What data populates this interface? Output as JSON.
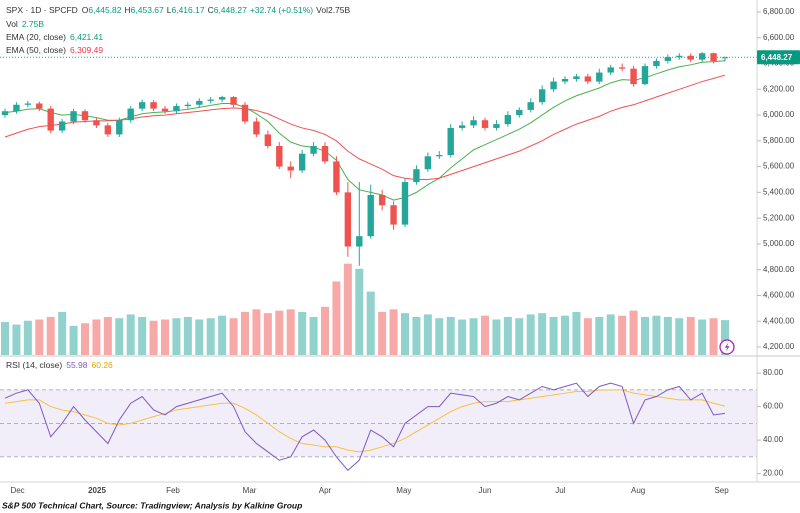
{
  "header": {
    "symbol": "SPX · 1D · SPCFD",
    "change": "+32.74 (+0.51%)",
    "vol": {
      "key": "Vol",
      "value": "2.75B"
    }
  },
  "caption": "S&P 500 Technical Chart, Source: Tradingview; Analysis by Kalkine Group",
  "chart_data": [
    {
      "type": "candlestick",
      "ohlc_keys": {
        "open": "O",
        "high": "H",
        "low": "L",
        "close": "C"
      },
      "last_labels": {
        "open": "6,445.82",
        "high": "6,453.67",
        "low": "6,416.17",
        "close": "6,448.27"
      },
      "last_price": {
        "value": 6448.27,
        "label": "6,448.27"
      },
      "up_color": "#26a69a",
      "down_color": "#ef5350",
      "candles": {
        "open": [
          6000,
          6030,
          6080,
          6090,
          6050,
          5880,
          5950,
          6030,
          5960,
          5920,
          5850,
          5960,
          6050,
          6100,
          6050,
          6030,
          6070,
          6080,
          6110,
          6120,
          6140,
          6080,
          5950,
          5850,
          5760,
          5600,
          5570,
          5700,
          5760,
          5640,
          5400,
          4980,
          5060,
          5380,
          5300,
          5150,
          5480,
          5580,
          5680,
          5690,
          5900,
          5920,
          5960,
          5900,
          5930,
          6000,
          6040,
          6100,
          6200,
          6260,
          6280,
          6300,
          6260,
          6330,
          6370,
          6360,
          6240,
          6380,
          6420,
          6450,
          6460,
          6430,
          6480,
          6445.82
        ],
        "high": [
          6050,
          6100,
          6110,
          6105,
          6070,
          5970,
          6050,
          6045,
          5980,
          5940,
          5980,
          6070,
          6120,
          6115,
          6070,
          6090,
          6100,
          6130,
          6140,
          6150,
          6147,
          6100,
          5980,
          5880,
          5790,
          5640,
          5730,
          5790,
          5790,
          5680,
          5480,
          5480,
          5460,
          5420,
          5330,
          5510,
          5610,
          5710,
          5720,
          5930,
          5950,
          5990,
          5980,
          5960,
          6030,
          6060,
          6130,
          6230,
          6290,
          6300,
          6320,
          6320,
          6360,
          6390,
          6400,
          6380,
          6400,
          6440,
          6470,
          6480,
          6480,
          6490,
          6485,
          6453.67
        ],
        "low": [
          5980,
          6010,
          6060,
          6030,
          5860,
          5860,
          5930,
          5940,
          5900,
          5830,
          5830,
          5940,
          6030,
          6030,
          6010,
          6010,
          6050,
          6060,
          6090,
          6100,
          6060,
          5930,
          5830,
          5740,
          5580,
          5510,
          5550,
          5680,
          5620,
          5380,
          4900,
          4830,
          5040,
          5260,
          5110,
          5130,
          5460,
          5560,
          5660,
          5670,
          5880,
          5900,
          5880,
          5880,
          5910,
          5980,
          6020,
          6080,
          6180,
          6240,
          6260,
          6240,
          6240,
          6310,
          6340,
          6220,
          6230,
          6360,
          6400,
          6430,
          6410,
          6410,
          6400,
          6416.17
        ],
        "close": [
          6030,
          6080,
          6090,
          6050,
          5880,
          5950,
          6030,
          5960,
          5920,
          5850,
          5960,
          6050,
          6100,
          6050,
          6030,
          6070,
          6080,
          6110,
          6120,
          6140,
          6080,
          5950,
          5850,
          5760,
          5600,
          5570,
          5700,
          5760,
          5640,
          5400,
          4980,
          5060,
          5380,
          5300,
          5150,
          5480,
          5580,
          5680,
          5690,
          5900,
          5920,
          5960,
          5900,
          5930,
          6000,
          6040,
          6100,
          6200,
          6260,
          6280,
          6300,
          6260,
          6330,
          6370,
          6360,
          6240,
          6380,
          6420,
          6450,
          6460,
          6430,
          6480,
          6420,
          6448.27
        ]
      },
      "series": [
        {
          "name": "EMA (20, close)",
          "color": "#4caf50",
          "last_label": "6,421.41",
          "values": [
            6020,
            6030,
            6045,
            6050,
            6020,
            6000,
            6005,
            5995,
            5980,
            5960,
            5960,
            5985,
            6010,
            6020,
            6025,
            6035,
            6045,
            6060,
            6075,
            6090,
            6090,
            6060,
            6010,
            5950,
            5860,
            5790,
            5760,
            5750,
            5720,
            5650,
            5500,
            5420,
            5400,
            5380,
            5340,
            5360,
            5400,
            5460,
            5510,
            5590,
            5660,
            5730,
            5770,
            5810,
            5850,
            5890,
            5940,
            6000,
            6060,
            6110,
            6150,
            6180,
            6210,
            6250,
            6275,
            6270,
            6290,
            6320,
            6350,
            6375,
            6390,
            6410,
            6415,
            6421.41
          ]
        },
        {
          "name": "EMA (50, close)",
          "color": "#f05252",
          "last_label": "6,309.49",
          "values": [
            5830,
            5860,
            5890,
            5910,
            5920,
            5930,
            5945,
            5950,
            5955,
            5955,
            5960,
            5970,
            5985,
            5995,
            6000,
            6010,
            6020,
            6030,
            6040,
            6050,
            6055,
            6050,
            6035,
            6010,
            5970,
            5930,
            5900,
            5880,
            5850,
            5800,
            5720,
            5660,
            5620,
            5580,
            5530,
            5510,
            5500,
            5500,
            5510,
            5540,
            5570,
            5600,
            5630,
            5660,
            5690,
            5720,
            5760,
            5800,
            5850,
            5890,
            5930,
            5960,
            5990,
            6030,
            6060,
            6080,
            6110,
            6140,
            6170,
            6200,
            6230,
            6260,
            6285,
            6309.49
          ]
        }
      ],
      "volume": {
        "ylim": [
          0,
          28
        ],
        "values": [
          2.6,
          2.4,
          2.7,
          2.8,
          3.0,
          3.4,
          2.3,
          2.5,
          2.8,
          3.0,
          2.9,
          3.2,
          3.0,
          2.7,
          2.8,
          2.9,
          3.0,
          2.8,
          2.9,
          3.1,
          2.9,
          3.4,
          3.6,
          3.3,
          3.5,
          3.6,
          3.4,
          3.0,
          3.8,
          5.8,
          7.2,
          6.8,
          5.0,
          3.4,
          3.6,
          3.3,
          3.0,
          3.2,
          2.9,
          3.0,
          2.8,
          2.9,
          3.1,
          2.8,
          3.0,
          2.9,
          3.2,
          3.3,
          3.0,
          3.1,
          3.4,
          2.9,
          3.0,
          3.2,
          3.1,
          3.5,
          3.0,
          3.1,
          3.0,
          2.9,
          3.0,
          2.8,
          2.9,
          2.75
        ]
      },
      "ylim": [
        4138,
        6893
      ],
      "yticks": [
        {
          "value": 4200,
          "label": "4,200.00"
        },
        {
          "value": 4400,
          "label": "4,400.00"
        },
        {
          "value": 4600,
          "label": "4,600.00"
        },
        {
          "value": 4800,
          "label": "4,800.00"
        },
        {
          "value": 5000,
          "label": "5,000.00"
        },
        {
          "value": 5200,
          "label": "5,200.00"
        },
        {
          "value": 5400,
          "label": "5,400.00"
        },
        {
          "value": 5600,
          "label": "5,600.00"
        },
        {
          "value": 5800,
          "label": "5,800.00"
        },
        {
          "value": 6000,
          "label": "6,000.00"
        },
        {
          "value": 6200,
          "label": "6,200.00"
        },
        {
          "value": 6400,
          "label": "6,400.00"
        },
        {
          "value": 6600,
          "label": "6,600.00"
        },
        {
          "value": 6800,
          "label": "6,800.00"
        }
      ],
      "xticks": [
        {
          "value": 1.1,
          "label": "Dec"
        },
        {
          "value": 8.05,
          "label": "2025"
        },
        {
          "value": 14.7,
          "label": "Feb"
        },
        {
          "value": 21.4,
          "label": "Mar"
        },
        {
          "value": 28,
          "label": "Apr"
        },
        {
          "value": 34.9,
          "label": "May"
        },
        {
          "value": 42,
          "label": "Jun"
        },
        {
          "value": 48.6,
          "label": "Jul"
        },
        {
          "value": 55.4,
          "label": "Aug"
        },
        {
          "value": 62.7,
          "label": "Sep"
        }
      ],
      "grid": false
    },
    {
      "type": "line",
      "title": "RSI (14, close)",
      "series": [
        {
          "color": "#7e57c2",
          "last_label": "55.98",
          "values": [
            65,
            68,
            70,
            62,
            42,
            50,
            60,
            52,
            45,
            38,
            52,
            62,
            66,
            58,
            55,
            60,
            62,
            64,
            66,
            68,
            60,
            45,
            38,
            33,
            28,
            30,
            42,
            46,
            40,
            30,
            22,
            28,
            46,
            42,
            36,
            50,
            55,
            60,
            60,
            68,
            67,
            66,
            60,
            62,
            66,
            64,
            68,
            72,
            70,
            72,
            74,
            66,
            72,
            74,
            72,
            50,
            64,
            66,
            70,
            72,
            64,
            68,
            55,
            55.98
          ]
        },
        {
          "color": "#f5c242",
          "last_label": "60.26",
          "values": [
            62,
            63,
            64,
            64,
            60,
            58,
            57,
            55,
            53,
            50,
            49,
            50,
            52,
            54,
            56,
            58,
            59,
            60,
            61,
            62,
            62,
            59,
            55,
            50,
            45,
            41,
            38,
            37,
            36,
            36,
            34,
            33,
            34,
            36,
            38,
            41,
            45,
            49,
            53,
            57,
            60,
            62,
            63,
            63,
            63,
            64,
            65,
            66,
            67,
            68,
            69,
            69,
            70,
            70,
            70,
            68,
            67,
            66,
            65,
            64,
            64,
            64,
            62,
            60.26
          ]
        }
      ],
      "levels": [
        70,
        50,
        30
      ],
      "ylim": [
        15,
        89
      ],
      "yticks": [
        {
          "value": 20,
          "label": "20.00"
        },
        {
          "value": 40,
          "label": "40.00"
        },
        {
          "value": 60,
          "label": "60.00"
        },
        {
          "value": 80,
          "label": "80.00"
        }
      ],
      "grid": false
    }
  ]
}
